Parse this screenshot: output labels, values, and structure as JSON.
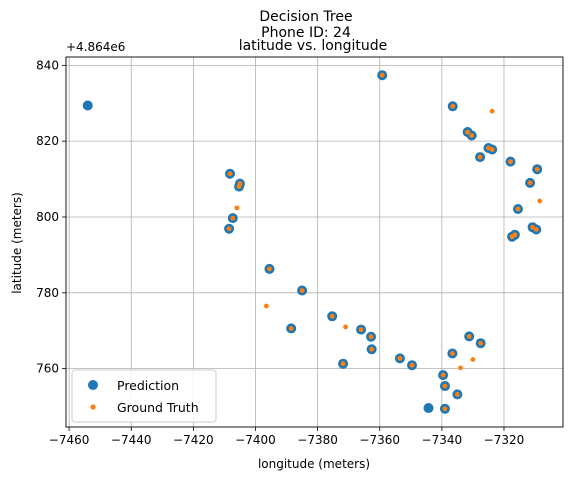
{
  "chart_data": {
    "type": "scatter",
    "title_lines": [
      "Decision Tree",
      "Phone ID: 24",
      "latitude vs. longitude"
    ],
    "xlabel": "longitude (meters)",
    "ylabel": "latitude (meters)",
    "offset_label": "+4.864e6",
    "xlim": [
      -7461,
      -7301
    ],
    "ylim": [
      744.6,
      842.2
    ],
    "xticks": [
      -7460,
      -7440,
      -7420,
      -7400,
      -7380,
      -7360,
      -7340,
      -7320
    ],
    "yticks": [
      760,
      780,
      800,
      820,
      840
    ],
    "grid": true,
    "legend_position": "lower-left",
    "series": [
      {
        "name": "Prediction",
        "color": "#1f77b4",
        "points": [
          [
            -7454.0,
            829.4
          ],
          [
            -7359.2,
            837.4
          ],
          [
            -7336.5,
            829.2
          ],
          [
            -7408.2,
            811.4
          ],
          [
            -7405.0,
            808.8
          ],
          [
            -7405.3,
            808.0
          ],
          [
            -7407.3,
            799.7
          ],
          [
            -7408.5,
            796.9
          ],
          [
            -7395.5,
            786.3
          ],
          [
            -7385.0,
            780.6
          ],
          [
            -7388.5,
            770.6
          ],
          [
            -7375.3,
            773.8
          ],
          [
            -7371.8,
            761.3
          ],
          [
            -7366.0,
            770.3
          ],
          [
            -7362.8,
            768.4
          ],
          [
            -7362.6,
            765.1
          ],
          [
            -7353.5,
            762.7
          ],
          [
            -7349.6,
            760.9
          ],
          [
            -7344.3,
            749.6
          ],
          [
            -7339.6,
            758.3
          ],
          [
            -7339.0,
            755.4
          ],
          [
            -7339.0,
            749.4
          ],
          [
            -7336.6,
            764.0
          ],
          [
            -7335.0,
            753.2
          ],
          [
            -7331.2,
            768.5
          ],
          [
            -7327.5,
            766.7
          ],
          [
            -7331.7,
            822.4
          ],
          [
            -7330.4,
            821.5
          ],
          [
            -7327.7,
            815.8
          ],
          [
            -7325.0,
            818.2
          ],
          [
            -7323.8,
            817.8
          ],
          [
            -7317.9,
            814.6
          ],
          [
            -7317.4,
            794.8
          ],
          [
            -7316.5,
            795.3
          ],
          [
            -7315.5,
            802.1
          ],
          [
            -7311.6,
            809.0
          ],
          [
            -7310.8,
            797.3
          ],
          [
            -7309.6,
            796.7
          ],
          [
            -7309.3,
            812.6
          ]
        ]
      },
      {
        "name": "Ground Truth",
        "color": "#ff7f0e",
        "points": [
          [
            -7406.0,
            802.4
          ],
          [
            -7396.5,
            776.5
          ],
          [
            -7371.0,
            771.0
          ],
          [
            -7334.0,
            760.2
          ],
          [
            -7330.0,
            762.4
          ],
          [
            -7323.8,
            827.9
          ],
          [
            -7308.5,
            804.2
          ],
          [
            -7359.2,
            837.4
          ],
          [
            -7336.5,
            829.2
          ],
          [
            -7408.2,
            811.4
          ],
          [
            -7405.0,
            808.8
          ],
          [
            -7405.3,
            808.0
          ],
          [
            -7407.3,
            799.7
          ],
          [
            -7408.5,
            796.9
          ],
          [
            -7395.5,
            786.3
          ],
          [
            -7385.0,
            780.6
          ],
          [
            -7388.5,
            770.6
          ],
          [
            -7375.3,
            773.8
          ],
          [
            -7371.8,
            761.3
          ],
          [
            -7366.0,
            770.3
          ],
          [
            -7362.8,
            768.4
          ],
          [
            -7362.6,
            765.1
          ],
          [
            -7353.5,
            762.7
          ],
          [
            -7349.6,
            760.9
          ],
          [
            -7339.6,
            758.3
          ],
          [
            -7339.0,
            755.4
          ],
          [
            -7339.0,
            749.4
          ],
          [
            -7336.6,
            764.0
          ],
          [
            -7335.0,
            753.2
          ],
          [
            -7331.2,
            768.5
          ],
          [
            -7327.5,
            766.7
          ],
          [
            -7331.7,
            822.4
          ],
          [
            -7330.4,
            821.5
          ],
          [
            -7327.7,
            815.8
          ],
          [
            -7325.0,
            818.2
          ],
          [
            -7323.8,
            817.8
          ],
          [
            -7317.9,
            814.6
          ],
          [
            -7317.4,
            794.8
          ],
          [
            -7316.5,
            795.3
          ],
          [
            -7315.5,
            802.1
          ],
          [
            -7311.6,
            809.0
          ],
          [
            -7310.8,
            797.3
          ],
          [
            -7309.6,
            796.7
          ],
          [
            -7309.3,
            812.6
          ]
        ]
      }
    ]
  }
}
